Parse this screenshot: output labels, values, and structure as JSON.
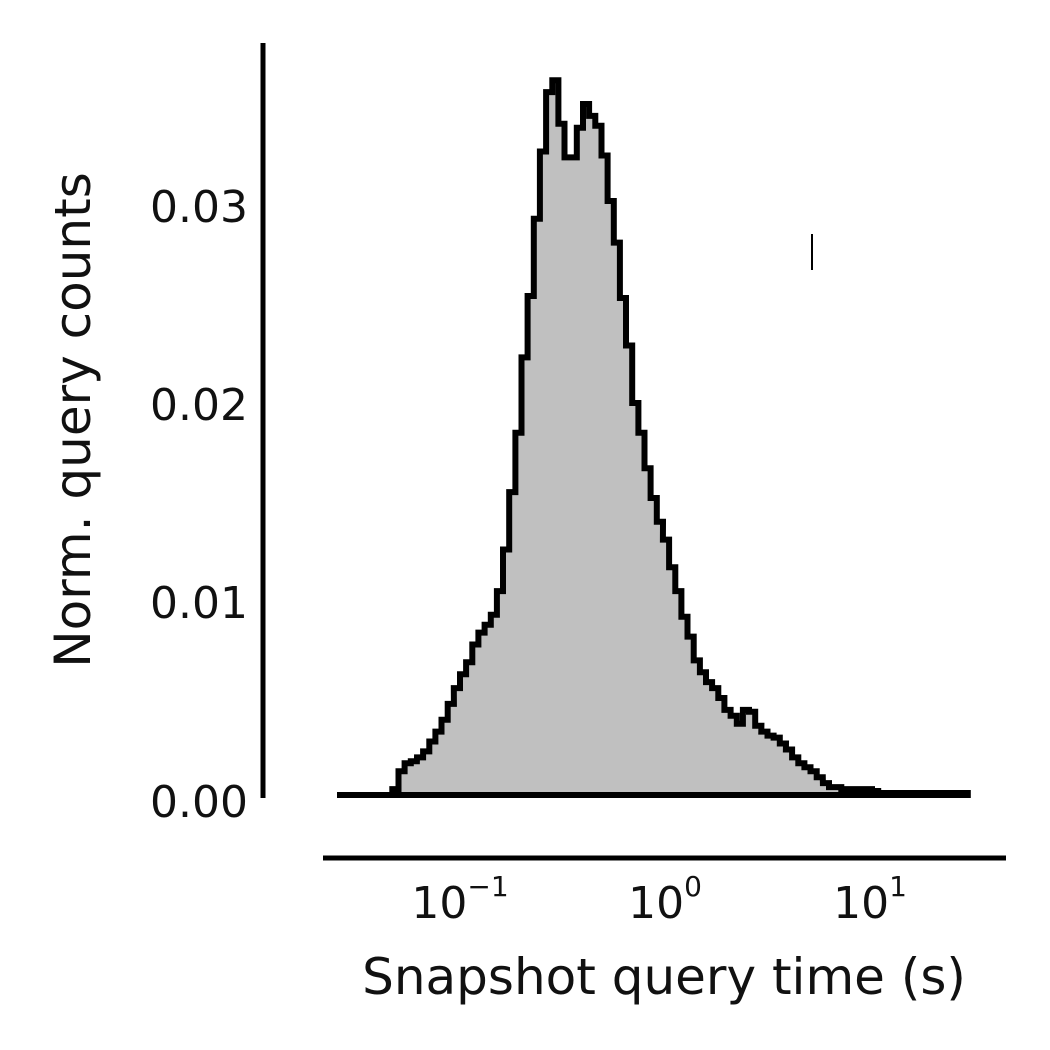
{
  "chart_data": {
    "type": "histogram",
    "title": "",
    "xlabel": "Snapshot query time (s)",
    "ylabel": "Norm. query counts",
    "x_scale": "log",
    "xlim": [
      0.015,
      50
    ],
    "ylim": [
      0,
      0.038
    ],
    "x_ticks": [
      {
        "value": 0.1,
        "base": "10",
        "exp": "−1"
      },
      {
        "value": 1,
        "base": "10",
        "exp": "0"
      },
      {
        "value": 10,
        "base": "10",
        "exp": "1"
      }
    ],
    "y_ticks": [
      {
        "value": 0.0,
        "label": "0.00"
      },
      {
        "value": 0.01,
        "label": "0.01"
      },
      {
        "value": 0.02,
        "label": "0.02"
      },
      {
        "value": 0.03,
        "label": "0.03"
      }
    ],
    "grid": false,
    "legend": "none",
    "fill_color": "#c0c0c0",
    "line_color": "#000000",
    "bin_log_start": -1.6,
    "bin_log_width": 0.03,
    "values": [
      0,
      0,
      0,
      0,
      0,
      0,
      0,
      0,
      0,
      0.0003,
      0.0012,
      0.0016,
      0.0017,
      0.0019,
      0.0022,
      0.0027,
      0.0032,
      0.0038,
      0.0046,
      0.0054,
      0.0061,
      0.0067,
      0.0076,
      0.0082,
      0.0086,
      0.0091,
      0.0103,
      0.0124,
      0.0153,
      0.0183,
      0.0221,
      0.0252,
      0.0291,
      0.0325,
      0.0355,
      0.0361,
      0.0339,
      0.0322,
      0.0322,
      0.0337,
      0.0349,
      0.0343,
      0.0338,
      0.0323,
      0.03,
      0.0279,
      0.0251,
      0.0227,
      0.0198,
      0.0183,
      0.0165,
      0.015,
      0.0138,
      0.0129,
      0.0115,
      0.0103,
      0.009,
      0.008,
      0.0068,
      0.0062,
      0.0057,
      0.0054,
      0.0049,
      0.0043,
      0.004,
      0.0036,
      0.0043,
      0.0042,
      0.0035,
      0.0032,
      0.003,
      0.0029,
      0.0026,
      0.0023,
      0.0019,
      0.0016,
      0.0014,
      0.0012,
      0.0009,
      0.0006,
      0.0004,
      0.0004,
      0.0003,
      0.0003,
      0.0003,
      0.0003,
      0.0003,
      0.0002,
      0.0001,
      0.0001,
      0.0001,
      0.0001,
      0.0001,
      0.0001,
      0.0001,
      0.0001,
      0.0001,
      0.0001,
      0.0001,
      0.0001,
      0.0001,
      0.0001,
      0.0001,
      0.0001,
      0.0001,
      0.0001,
      0.0001,
      0.0001,
      0.0001,
      0.0001,
      0.0001,
      0.0001,
      0.0001,
      0.0001,
      0.0001,
      0.0001,
      0.0001,
      0.0001,
      0.0001,
      0.0001,
      0.0001,
      0.0001,
      0.0001,
      0.0001,
      0.0001,
      0.0001,
      0.0001,
      0.0001,
      0.0001,
      0.0001,
      0.0001,
      0.0001,
      0.0001,
      0.0001,
      0.0001,
      0.0001,
      0.0001,
      0.0001,
      0.0001,
      0.0001,
      0.0001,
      0.0001,
      0.0001,
      0.0001,
      0.0001,
      0.0001,
      0.0001,
      0.0001,
      0.0001,
      0.0001,
      0.0001,
      0.0001,
      0.0001,
      0.0001,
      0.0001,
      0.0001,
      0.0001
    ]
  }
}
